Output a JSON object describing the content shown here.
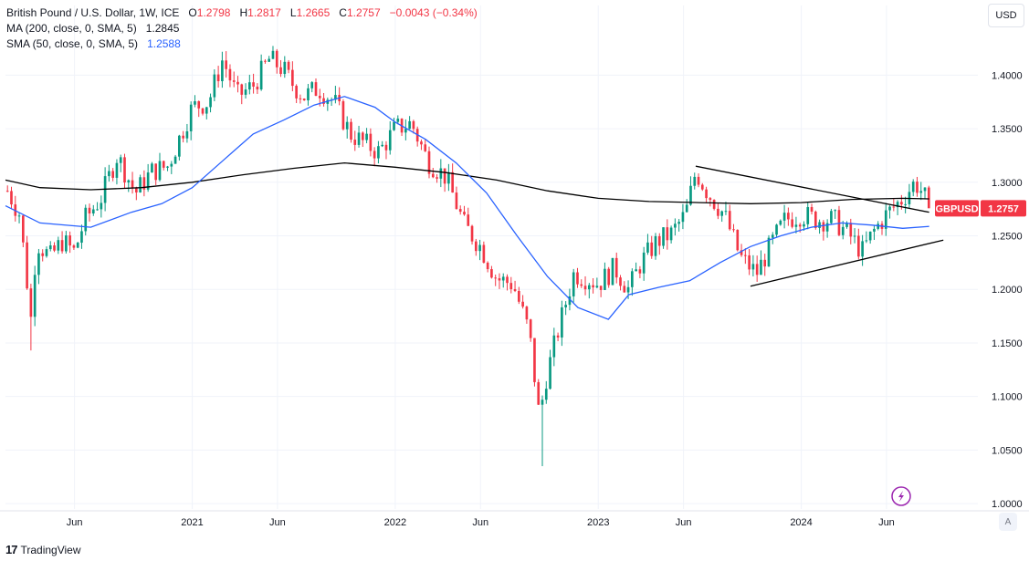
{
  "legend": {
    "symbol": "British Pound / U.S. Dollar, 1W, ICE",
    "o_label": "O",
    "o_value": "1.2798",
    "h_label": "H",
    "h_value": "1.2817",
    "l_label": "L",
    "l_value": "1.2665",
    "c_label": "C",
    "c_value": "1.2757",
    "change": "−0.0043 (−0.34%)",
    "ma200_label": "MA (200, close, 0, SMA, 5)",
    "ma200_value": "1.2845",
    "sma50_label": "SMA (50, close, 0, SMA, 5)",
    "sma50_value": "1.2588"
  },
  "currency": "USD",
  "auto_scale": "A",
  "footer": {
    "brand": "TradingView",
    "logo": "17"
  },
  "colors": {
    "up": "#089981",
    "down": "#f23645",
    "ma200": "#000000",
    "sma50": "#2962ff",
    "grid": "#f0f3fa"
  },
  "chart_data": {
    "type": "candlestick",
    "title": "British Pound / U.S. Dollar, 1W, ICE",
    "ylim": [
      0.995,
      1.465
    ],
    "y_ticks": [
      "1.0000",
      "1.0500",
      "1.1000",
      "1.1500",
      "1.2000",
      "1.2500",
      "1.3000",
      "1.3500",
      "1.4000"
    ],
    "x_range": [
      2020.08,
      2024.87
    ],
    "x_ticks": [
      {
        "label": "Jun",
        "t": 2020.42
      },
      {
        "label": "2021",
        "t": 2021.0
      },
      {
        "label": "Jun",
        "t": 2021.42
      },
      {
        "label": "2022",
        "t": 2022.0
      },
      {
        "label": "Jun",
        "t": 2022.42
      },
      {
        "label": "2023",
        "t": 2023.0
      },
      {
        "label": "Jun",
        "t": 2023.42
      },
      {
        "label": "2024",
        "t": 2024.0
      },
      {
        "label": "Jun",
        "t": 2024.42
      }
    ],
    "price_anchors": [
      [
        2020.09,
        1.292
      ],
      [
        2020.15,
        1.27
      ],
      [
        2020.21,
        1.165
      ],
      [
        2020.23,
        1.245
      ],
      [
        2020.3,
        1.23
      ],
      [
        2020.36,
        1.245
      ],
      [
        2020.42,
        1.235
      ],
      [
        2020.47,
        1.265
      ],
      [
        2020.55,
        1.285
      ],
      [
        2020.63,
        1.325
      ],
      [
        2020.72,
        1.29
      ],
      [
        2020.8,
        1.31
      ],
      [
        2020.88,
        1.315
      ],
      [
        2021.0,
        1.37
      ],
      [
        2021.08,
        1.375
      ],
      [
        2021.15,
        1.415
      ],
      [
        2021.22,
        1.38
      ],
      [
        2021.3,
        1.39
      ],
      [
        2021.38,
        1.415
      ],
      [
        2021.45,
        1.405
      ],
      [
        2021.5,
        1.39
      ],
      [
        2021.55,
        1.38
      ],
      [
        2021.62,
        1.388
      ],
      [
        2021.7,
        1.375
      ],
      [
        2021.78,
        1.345
      ],
      [
        2021.86,
        1.335
      ],
      [
        2021.92,
        1.328
      ],
      [
        2022.0,
        1.35
      ],
      [
        2022.08,
        1.355
      ],
      [
        2022.16,
        1.32
      ],
      [
        2022.25,
        1.305
      ],
      [
        2022.34,
        1.26
      ],
      [
        2022.42,
        1.24
      ],
      [
        2022.5,
        1.21
      ],
      [
        2022.58,
        1.205
      ],
      [
        2022.66,
        1.16
      ],
      [
        2022.71,
        1.08
      ],
      [
        2022.74,
        1.115
      ],
      [
        2022.8,
        1.16
      ],
      [
        2022.88,
        1.215
      ],
      [
        2022.95,
        1.21
      ],
      [
        2023.0,
        1.205
      ],
      [
        2023.08,
        1.22
      ],
      [
        2023.15,
        1.2
      ],
      [
        2023.21,
        1.225
      ],
      [
        2023.29,
        1.245
      ],
      [
        2023.36,
        1.252
      ],
      [
        2023.43,
        1.27
      ],
      [
        2023.48,
        1.31
      ],
      [
        2023.54,
        1.29
      ],
      [
        2023.62,
        1.27
      ],
      [
        2023.7,
        1.23
      ],
      [
        2023.78,
        1.215
      ],
      [
        2023.86,
        1.245
      ],
      [
        2023.92,
        1.265
      ],
      [
        2024.0,
        1.27
      ],
      [
        2024.08,
        1.265
      ],
      [
        2024.16,
        1.265
      ],
      [
        2024.24,
        1.25
      ],
      [
        2024.3,
        1.235
      ],
      [
        2024.36,
        1.255
      ],
      [
        2024.42,
        1.27
      ],
      [
        2024.5,
        1.285
      ],
      [
        2024.56,
        1.3
      ],
      [
        2024.6,
        1.29
      ],
      [
        2024.63,
        1.2757
      ]
    ],
    "series": [
      {
        "name": "MA (200, close, 0, SMA, 5)",
        "color": "#000000",
        "points": [
          [
            2020.08,
            1.302
          ],
          [
            2020.25,
            1.295
          ],
          [
            2020.5,
            1.293
          ],
          [
            2020.75,
            1.295
          ],
          [
            2021.0,
            1.3
          ],
          [
            2021.25,
            1.307
          ],
          [
            2021.5,
            1.313
          ],
          [
            2021.75,
            1.318
          ],
          [
            2022.0,
            1.314
          ],
          [
            2022.25,
            1.309
          ],
          [
            2022.5,
            1.302
          ],
          [
            2022.75,
            1.292
          ],
          [
            2023.0,
            1.285
          ],
          [
            2023.25,
            1.282
          ],
          [
            2023.5,
            1.281
          ],
          [
            2023.75,
            1.28
          ],
          [
            2024.0,
            1.281
          ],
          [
            2024.25,
            1.284
          ],
          [
            2024.5,
            1.285
          ],
          [
            2024.63,
            1.2845
          ]
        ]
      },
      {
        "name": "SMA (50, close, 0, SMA, 5)",
        "color": "#2962ff",
        "points": [
          [
            2020.08,
            1.278
          ],
          [
            2020.25,
            1.262
          ],
          [
            2020.5,
            1.258
          ],
          [
            2020.7,
            1.272
          ],
          [
            2020.85,
            1.28
          ],
          [
            2021.0,
            1.295
          ],
          [
            2021.15,
            1.32
          ],
          [
            2021.3,
            1.345
          ],
          [
            2021.45,
            1.358
          ],
          [
            2021.6,
            1.372
          ],
          [
            2021.75,
            1.38
          ],
          [
            2021.9,
            1.37
          ],
          [
            2022.0,
            1.356
          ],
          [
            2022.15,
            1.34
          ],
          [
            2022.3,
            1.318
          ],
          [
            2022.45,
            1.29
          ],
          [
            2022.6,
            1.25
          ],
          [
            2022.75,
            1.212
          ],
          [
            2022.9,
            1.183
          ],
          [
            2023.05,
            1.172
          ],
          [
            2023.15,
            1.195
          ],
          [
            2023.3,
            1.202
          ],
          [
            2023.45,
            1.208
          ],
          [
            2023.6,
            1.225
          ],
          [
            2023.75,
            1.24
          ],
          [
            2023.9,
            1.25
          ],
          [
            2024.05,
            1.258
          ],
          [
            2024.2,
            1.262
          ],
          [
            2024.35,
            1.26
          ],
          [
            2024.5,
            1.257
          ],
          [
            2024.63,
            1.2588
          ]
        ]
      }
    ],
    "trendlines": [
      {
        "name": "upper-trendline",
        "from": [
          2023.48,
          1.315
        ],
        "to": [
          2024.63,
          1.272
        ]
      },
      {
        "name": "lower-trendline",
        "from": [
          2023.75,
          1.203
        ],
        "to": [
          2024.7,
          1.246
        ]
      }
    ],
    "price_label": {
      "symbol": "GBPUSD",
      "value": "1.2757",
      "price": 1.2757
    }
  }
}
